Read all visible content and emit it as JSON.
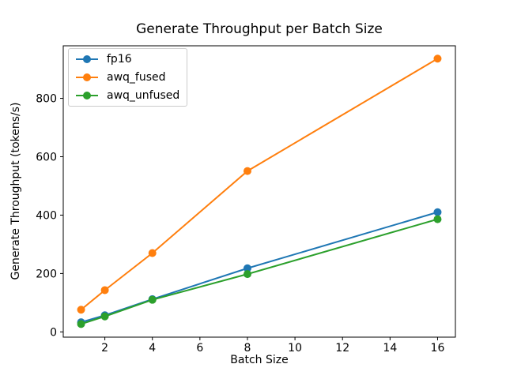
{
  "chart_data": {
    "type": "line",
    "title": "Generate Throughput per Batch Size",
    "xlabel": "Batch Size",
    "ylabel": "Generate Throughput (tokens/s)",
    "x": [
      1,
      2,
      4,
      8,
      16
    ],
    "series": [
      {
        "name": "fp16",
        "color": "#1f77b4",
        "values": [
          33,
          57,
          112,
          218,
          410
        ]
      },
      {
        "name": "awq_fused",
        "color": "#ff7f0e",
        "values": [
          76,
          143,
          270,
          551,
          936
        ]
      },
      {
        "name": "awq_unfused",
        "color": "#2ca02c",
        "values": [
          27,
          53,
          110,
          198,
          386
        ]
      }
    ],
    "xticks": [
      2,
      4,
      6,
      8,
      10,
      12,
      14,
      16
    ],
    "yticks": [
      0,
      200,
      400,
      600,
      800
    ],
    "xlim": [
      0.25,
      16.75
    ],
    "ylim": [
      -18,
      980
    ],
    "grid": false,
    "marker": "o",
    "legend_position": "upper left",
    "axis_color": "#000000",
    "background_color": "#ffffff"
  }
}
